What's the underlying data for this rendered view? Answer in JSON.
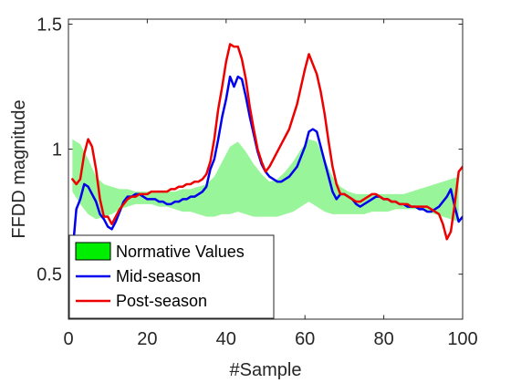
{
  "chart_data": {
    "type": "line",
    "title": "",
    "xlabel": "#Sample",
    "ylabel": "FFDD magnitude",
    "xlim": [
      0,
      100
    ],
    "ylim": [
      0.32,
      1.52
    ],
    "xticks": [
      0,
      20,
      40,
      60,
      80,
      100
    ],
    "xtick_labels": [
      "0",
      "20",
      "40",
      "60",
      "80",
      "100"
    ],
    "yticks": [
      0.5,
      1,
      1.5
    ],
    "ytick_labels": [
      "0.5",
      "1",
      "1.5"
    ],
    "grid": false,
    "legend": {
      "placement": "bottom-left",
      "entries": [
        "Normative Values",
        "Mid-season",
        "Post-season"
      ]
    },
    "band": {
      "name": "Normative Values",
      "color": "#99f599",
      "legend_color": "#00ee00",
      "x": [
        1,
        3,
        5,
        7,
        9,
        11,
        13,
        15,
        17,
        19,
        21,
        23,
        25,
        27,
        29,
        31,
        33,
        35,
        37,
        39,
        41,
        43,
        45,
        47,
        49,
        51,
        53,
        55,
        57,
        59,
        61,
        63,
        65,
        67,
        69,
        71,
        73,
        75,
        77,
        79,
        81,
        83,
        85,
        87,
        89,
        91,
        93,
        95,
        97,
        99
      ],
      "upper": [
        1.04,
        1.02,
        0.96,
        0.89,
        0.86,
        0.85,
        0.84,
        0.84,
        0.83,
        0.83,
        0.83,
        0.83,
        0.83,
        0.83,
        0.84,
        0.84,
        0.85,
        0.86,
        0.89,
        0.95,
        1.01,
        1.03,
        0.99,
        0.94,
        0.9,
        0.87,
        0.88,
        0.91,
        0.95,
        1.0,
        1.04,
        1.03,
        0.96,
        0.89,
        0.85,
        0.83,
        0.82,
        0.82,
        0.82,
        0.82,
        0.82,
        0.82,
        0.82,
        0.83,
        0.84,
        0.85,
        0.86,
        0.87,
        0.88,
        0.89
      ],
      "lower": [
        0.83,
        0.78,
        0.74,
        0.72,
        0.73,
        0.74,
        0.76,
        0.77,
        0.78,
        0.78,
        0.78,
        0.77,
        0.77,
        0.76,
        0.75,
        0.75,
        0.74,
        0.73,
        0.73,
        0.74,
        0.74,
        0.75,
        0.74,
        0.73,
        0.73,
        0.73,
        0.73,
        0.74,
        0.75,
        0.77,
        0.79,
        0.77,
        0.75,
        0.74,
        0.74,
        0.74,
        0.74,
        0.74,
        0.75,
        0.75,
        0.75,
        0.76,
        0.76,
        0.76,
        0.76,
        0.75,
        0.74,
        0.73,
        0.72,
        0.71
      ]
    },
    "series": [
      {
        "name": "Mid-season",
        "color": "#0000ee",
        "x": [
          1,
          2,
          3,
          4,
          5,
          6,
          7,
          8,
          9,
          10,
          11,
          12,
          13,
          14,
          15,
          16,
          17,
          18,
          19,
          20,
          21,
          22,
          23,
          24,
          25,
          26,
          27,
          28,
          29,
          30,
          31,
          32,
          33,
          34,
          35,
          36,
          37,
          38,
          39,
          40,
          41,
          42,
          43,
          44,
          45,
          46,
          47,
          48,
          49,
          50,
          51,
          52,
          53,
          54,
          55,
          56,
          57,
          58,
          59,
          60,
          61,
          62,
          63,
          64,
          65,
          66,
          67,
          68,
          69,
          70,
          71,
          72,
          73,
          74,
          75,
          76,
          77,
          78,
          79,
          80,
          81,
          82,
          83,
          84,
          85,
          86,
          87,
          88,
          89,
          90,
          91,
          92,
          93,
          94,
          95,
          96,
          97,
          98,
          99,
          100
        ],
        "y": [
          0.58,
          0.76,
          0.8,
          0.86,
          0.85,
          0.82,
          0.79,
          0.74,
          0.72,
          0.69,
          0.68,
          0.71,
          0.75,
          0.79,
          0.81,
          0.81,
          0.82,
          0.82,
          0.81,
          0.8,
          0.8,
          0.8,
          0.79,
          0.79,
          0.78,
          0.78,
          0.79,
          0.79,
          0.8,
          0.8,
          0.81,
          0.81,
          0.82,
          0.83,
          0.85,
          0.92,
          0.96,
          1.04,
          1.13,
          1.2,
          1.29,
          1.25,
          1.29,
          1.28,
          1.21,
          1.13,
          1.06,
          0.99,
          0.94,
          0.91,
          0.89,
          0.88,
          0.87,
          0.87,
          0.88,
          0.89,
          0.91,
          0.93,
          0.97,
          1.01,
          1.07,
          1.08,
          1.07,
          1.01,
          0.95,
          0.89,
          0.83,
          0.8,
          0.82,
          0.82,
          0.81,
          0.8,
          0.78,
          0.77,
          0.78,
          0.79,
          0.8,
          0.81,
          0.81,
          0.8,
          0.8,
          0.79,
          0.79,
          0.78,
          0.78,
          0.77,
          0.77,
          0.77,
          0.76,
          0.76,
          0.75,
          0.75,
          0.76,
          0.77,
          0.79,
          0.81,
          0.84,
          0.77,
          0.71,
          0.73
        ]
      },
      {
        "name": "Post-season",
        "color": "#ee0000",
        "x": [
          1,
          2,
          3,
          4,
          5,
          6,
          7,
          8,
          9,
          10,
          11,
          12,
          13,
          14,
          15,
          16,
          17,
          18,
          19,
          20,
          21,
          22,
          23,
          24,
          25,
          26,
          27,
          28,
          29,
          30,
          31,
          32,
          33,
          34,
          35,
          36,
          37,
          38,
          39,
          40,
          41,
          42,
          43,
          44,
          45,
          46,
          47,
          48,
          49,
          50,
          51,
          52,
          53,
          54,
          55,
          56,
          57,
          58,
          59,
          60,
          61,
          62,
          63,
          64,
          65,
          66,
          67,
          68,
          69,
          70,
          71,
          72,
          73,
          74,
          75,
          76,
          77,
          78,
          79,
          80,
          81,
          82,
          83,
          84,
          85,
          86,
          87,
          88,
          89,
          90,
          91,
          92,
          93,
          94,
          95,
          96,
          97,
          98,
          99,
          100
        ],
        "y": [
          0.88,
          0.86,
          0.88,
          0.98,
          1.04,
          1.01,
          0.92,
          0.8,
          0.73,
          0.73,
          0.7,
          0.73,
          0.76,
          0.78,
          0.8,
          0.81,
          0.81,
          0.82,
          0.82,
          0.82,
          0.83,
          0.83,
          0.83,
          0.83,
          0.83,
          0.84,
          0.84,
          0.85,
          0.85,
          0.86,
          0.86,
          0.87,
          0.87,
          0.88,
          0.9,
          0.95,
          1.04,
          1.16,
          1.25,
          1.35,
          1.42,
          1.41,
          1.41,
          1.36,
          1.28,
          1.17,
          1.08,
          1.0,
          0.95,
          0.91,
          0.93,
          0.96,
          0.99,
          1.02,
          1.05,
          1.08,
          1.13,
          1.18,
          1.25,
          1.32,
          1.38,
          1.34,
          1.3,
          1.23,
          1.14,
          1.03,
          0.93,
          0.86,
          0.82,
          0.82,
          0.81,
          0.8,
          0.79,
          0.79,
          0.8,
          0.81,
          0.82,
          0.82,
          0.81,
          0.8,
          0.8,
          0.79,
          0.79,
          0.78,
          0.78,
          0.78,
          0.77,
          0.77,
          0.77,
          0.77,
          0.77,
          0.76,
          0.75,
          0.74,
          0.7,
          0.64,
          0.67,
          0.78,
          0.91,
          0.93
        ]
      }
    ]
  }
}
